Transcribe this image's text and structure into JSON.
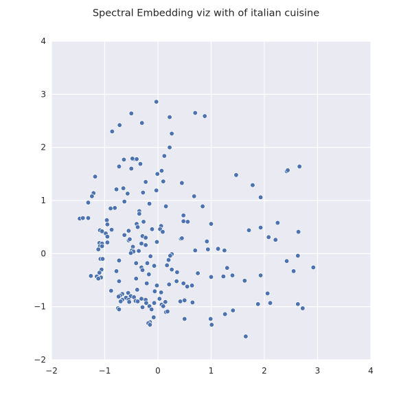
{
  "chart_data": {
    "type": "scatter",
    "title": "Spectral Embedding viz with of italian cuisine",
    "xlabel": "",
    "ylabel": "",
    "xlim": [
      -2,
      4
    ],
    "ylim": [
      -2,
      4
    ],
    "x_ticks": [
      "−2",
      "−1",
      "0",
      "1",
      "2",
      "3",
      "4"
    ],
    "y_ticks": [
      "−2",
      "−1",
      "0",
      "1",
      "2",
      "3",
      "4"
    ],
    "x_tick_values": [
      -2,
      -1,
      0,
      1,
      2,
      3,
      4
    ],
    "y_tick_values": [
      -2,
      -1,
      0,
      1,
      2,
      3,
      4
    ],
    "grid": true,
    "colors": {
      "background": "#eaeaf2",
      "grid": "#ffffff",
      "point": "#4c72b0",
      "point_edge": "#ffffff"
    },
    "series": [
      {
        "points": [
          [
            -0.03,
            2.86
          ],
          [
            -0.5,
            2.64
          ],
          [
            0.7,
            2.65
          ],
          [
            0.88,
            2.59
          ],
          [
            0.22,
            2.57
          ],
          [
            -0.72,
            2.42
          ],
          [
            -0.3,
            2.46
          ],
          [
            -0.86,
            2.3
          ],
          [
            0.26,
            2.26
          ],
          [
            0.22,
            2.0
          ],
          [
            0.12,
            1.84
          ],
          [
            -0.64,
            1.77
          ],
          [
            -0.45,
            1.78
          ],
          [
            -0.4,
            1.78
          ],
          [
            -0.48,
            1.79
          ],
          [
            -0.33,
            1.69
          ],
          [
            -0.73,
            1.64
          ],
          [
            -0.5,
            1.6
          ],
          [
            0.07,
            1.56
          ],
          [
            -0.01,
            1.5
          ],
          [
            -1.18,
            1.45
          ],
          [
            1.47,
            1.48
          ],
          [
            2.42,
            1.55
          ],
          [
            2.44,
            1.57
          ],
          [
            2.66,
            1.64
          ],
          [
            0.45,
            1.33
          ],
          [
            0.1,
            1.36
          ],
          [
            -0.23,
            1.35
          ],
          [
            -0.78,
            1.21
          ],
          [
            -0.65,
            1.23
          ],
          [
            1.78,
            1.29
          ],
          [
            -0.03,
            1.19
          ],
          [
            -1.21,
            1.14
          ],
          [
            -1.24,
            1.08
          ],
          [
            -0.28,
            1.15
          ],
          [
            -0.57,
            1.13
          ],
          [
            0.68,
            1.08
          ],
          [
            1.93,
            1.06
          ],
          [
            -1.31,
            0.96
          ],
          [
            -0.63,
            0.98
          ],
          [
            -0.16,
            0.94
          ],
          [
            0.15,
            0.89
          ],
          [
            -0.81,
            0.86
          ],
          [
            0.84,
            0.89
          ],
          [
            -0.89,
            0.85
          ],
          [
            -0.35,
            0.8
          ],
          [
            -0.35,
            0.75
          ],
          [
            0.48,
            0.72
          ],
          [
            -1.47,
            0.66
          ],
          [
            -1.41,
            0.67
          ],
          [
            -1.31,
            0.67
          ],
          [
            -0.96,
            0.63
          ],
          [
            -0.27,
            0.6
          ],
          [
            0.48,
            0.61
          ],
          [
            0.56,
            0.6
          ],
          [
            -0.95,
            0.55
          ],
          [
            -0.4,
            0.56
          ],
          [
            -0.38,
            0.5
          ],
          [
            1.0,
            0.56
          ],
          [
            2.25,
            0.58
          ],
          [
            0.06,
            0.52
          ],
          [
            0.04,
            0.46
          ],
          [
            -0.87,
            0.45
          ],
          [
            -1.09,
            0.44
          ],
          [
            -1.05,
            0.42
          ],
          [
            -0.55,
            0.43
          ],
          [
            -0.11,
            0.46
          ],
          [
            0.09,
            0.41
          ],
          [
            1.71,
            0.44
          ],
          [
            1.93,
            0.49
          ],
          [
            2.64,
            0.41
          ],
          [
            -0.98,
            0.38
          ],
          [
            -0.63,
            0.35
          ],
          [
            -0.29,
            0.33
          ],
          [
            -0.95,
            0.32
          ],
          [
            0.43,
            0.28
          ],
          [
            0.45,
            0.29
          ],
          [
            -0.23,
            0.3
          ],
          [
            2.08,
            0.31
          ],
          [
            -0.55,
            0.25
          ],
          [
            -0.53,
            0.27
          ],
          [
            -0.02,
            0.22
          ],
          [
            0.92,
            0.23
          ],
          [
            2.21,
            0.26
          ],
          [
            -1.1,
            0.2
          ],
          [
            -1.05,
            0.19
          ],
          [
            -0.95,
            0.21
          ],
          [
            -0.31,
            0.19
          ],
          [
            -0.23,
            0.16
          ],
          [
            -1.09,
            0.14
          ],
          [
            -1.05,
            0.14
          ],
          [
            -0.47,
            0.13
          ],
          [
            1.13,
            0.09
          ],
          [
            -1.12,
            0.08
          ],
          [
            -0.49,
            0.06
          ],
          [
            -0.46,
            0.04
          ],
          [
            -0.36,
            0.05
          ],
          [
            0.7,
            0.06
          ],
          [
            0.94,
            0.08
          ],
          [
            1.25,
            0.06
          ],
          [
            -0.51,
            0.01
          ],
          [
            0.26,
            -0.01
          ],
          [
            0.23,
            -0.04
          ],
          [
            -0.14,
            -0.05
          ],
          [
            2.63,
            -0.04
          ],
          [
            -1.08,
            -0.1
          ],
          [
            -1.04,
            -0.1
          ],
          [
            0.2,
            -0.12
          ],
          [
            2.42,
            -0.14
          ],
          [
            -0.73,
            -0.13
          ],
          [
            -0.41,
            -0.18
          ],
          [
            -0.2,
            -0.18
          ],
          [
            -0.07,
            -0.23
          ],
          [
            0.17,
            -0.22
          ],
          [
            -0.31,
            -0.26
          ],
          [
            -0.29,
            -0.31
          ],
          [
            0.26,
            -0.3
          ],
          [
            1.3,
            -0.27
          ],
          [
            2.92,
            -0.26
          ],
          [
            -1.06,
            -0.3
          ],
          [
            -0.78,
            -0.33
          ],
          [
            -1.1,
            -0.36
          ],
          [
            2.55,
            -0.33
          ],
          [
            0.36,
            -0.35
          ],
          [
            0.75,
            -0.37
          ],
          [
            -0.17,
            -0.39
          ],
          [
            1.23,
            -0.43
          ],
          [
            1.4,
            -0.41
          ],
          [
            1.93,
            -0.41
          ],
          [
            -1.26,
            -0.42
          ],
          [
            -1.15,
            -0.43
          ],
          [
            -1.07,
            -0.45
          ],
          [
            -1.12,
            -0.47
          ],
          [
            -0.41,
            -0.47
          ],
          [
            1.0,
            -0.44
          ],
          [
            -0.73,
            -0.52
          ],
          [
            0.35,
            -0.52
          ],
          [
            1.63,
            -0.51
          ],
          [
            0.48,
            -0.56
          ],
          [
            -0.21,
            -0.56
          ],
          [
            0.21,
            -0.58
          ],
          [
            -0.02,
            -0.6
          ],
          [
            0.55,
            -0.62
          ],
          [
            0.64,
            -0.6
          ],
          [
            -0.88,
            -0.7
          ],
          [
            -0.39,
            -0.68
          ],
          [
            -0.06,
            -0.71
          ],
          [
            0.06,
            -0.73
          ],
          [
            2.06,
            -0.75
          ],
          [
            -0.56,
            -0.74
          ],
          [
            -0.67,
            -0.76
          ],
          [
            -0.71,
            -0.79
          ],
          [
            -0.74,
            -0.81
          ],
          [
            -0.51,
            -0.8
          ],
          [
            -0.6,
            -0.83
          ],
          [
            -0.45,
            -0.82
          ],
          [
            -0.31,
            -0.85
          ],
          [
            -0.23,
            -0.87
          ],
          [
            0.03,
            -0.85
          ],
          [
            -0.67,
            -0.87
          ],
          [
            -0.55,
            -0.87
          ],
          [
            -0.42,
            -0.89
          ],
          [
            -0.38,
            -0.9
          ],
          [
            0.14,
            -0.91
          ],
          [
            0.42,
            -0.9
          ],
          [
            0.5,
            -0.88
          ],
          [
            0.65,
            -0.92
          ],
          [
            1.88,
            -0.95
          ],
          [
            2.11,
            -0.93
          ],
          [
            2.63,
            -0.95
          ],
          [
            -0.7,
            -0.9
          ],
          [
            -0.54,
            -0.91
          ],
          [
            -0.22,
            -0.93
          ],
          [
            -0.07,
            -0.93
          ],
          [
            0.07,
            -0.96
          ],
          [
            0.1,
            -0.99
          ],
          [
            -0.29,
            -1.01
          ],
          [
            -0.16,
            -0.99
          ],
          [
            2.72,
            -1.03
          ],
          [
            -0.75,
            -1.03
          ],
          [
            -0.73,
            -1.05
          ],
          [
            -0.12,
            -1.05
          ],
          [
            1.41,
            -1.07
          ],
          [
            0.15,
            -1.1
          ],
          [
            0.18,
            -1.09
          ],
          [
            1.26,
            -1.14
          ],
          [
            -0.08,
            -1.2
          ],
          [
            0.5,
            -1.23
          ],
          [
            0.99,
            -1.23
          ],
          [
            -0.15,
            -1.29
          ],
          [
            -0.18,
            -1.31
          ],
          [
            -0.15,
            -1.34
          ],
          [
            1.01,
            -1.34
          ],
          [
            1.65,
            -1.56
          ]
        ]
      }
    ]
  }
}
